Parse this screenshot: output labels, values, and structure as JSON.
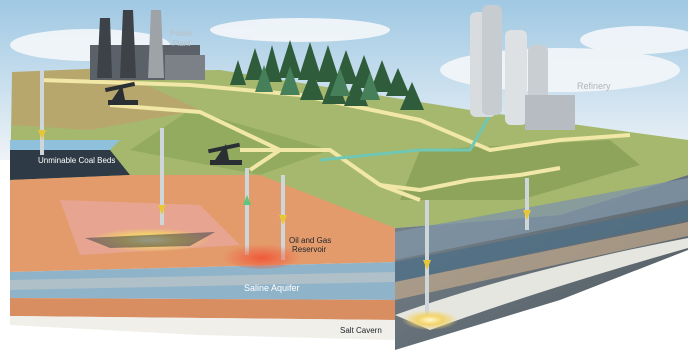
{
  "labels": {
    "power_plant_line1": "Power",
    "power_plant_line2": "Plant",
    "refinery": "Refinery",
    "coal_beds": "Unminable Coal Beds",
    "oil_gas_line1": "Oil and Gas",
    "oil_gas_line2": "Reservoir",
    "saline_aquifer": "Saline Aquifer",
    "salt_cavern": "Salt Cavern"
  },
  "colors": {
    "sky_top": "#a7cde6",
    "sky_bottom": "#e4eef5",
    "grass": "#9db26a",
    "grass_dark": "#7f9652",
    "pipeline": "#f1e7a6",
    "pipeline_teal": "#6fc7b4",
    "soil_orange": "#e39869",
    "aquifer_blue": "#8fb5cc",
    "front_face": "#6e7a84",
    "injection_arrow": "#e8c63a"
  }
}
